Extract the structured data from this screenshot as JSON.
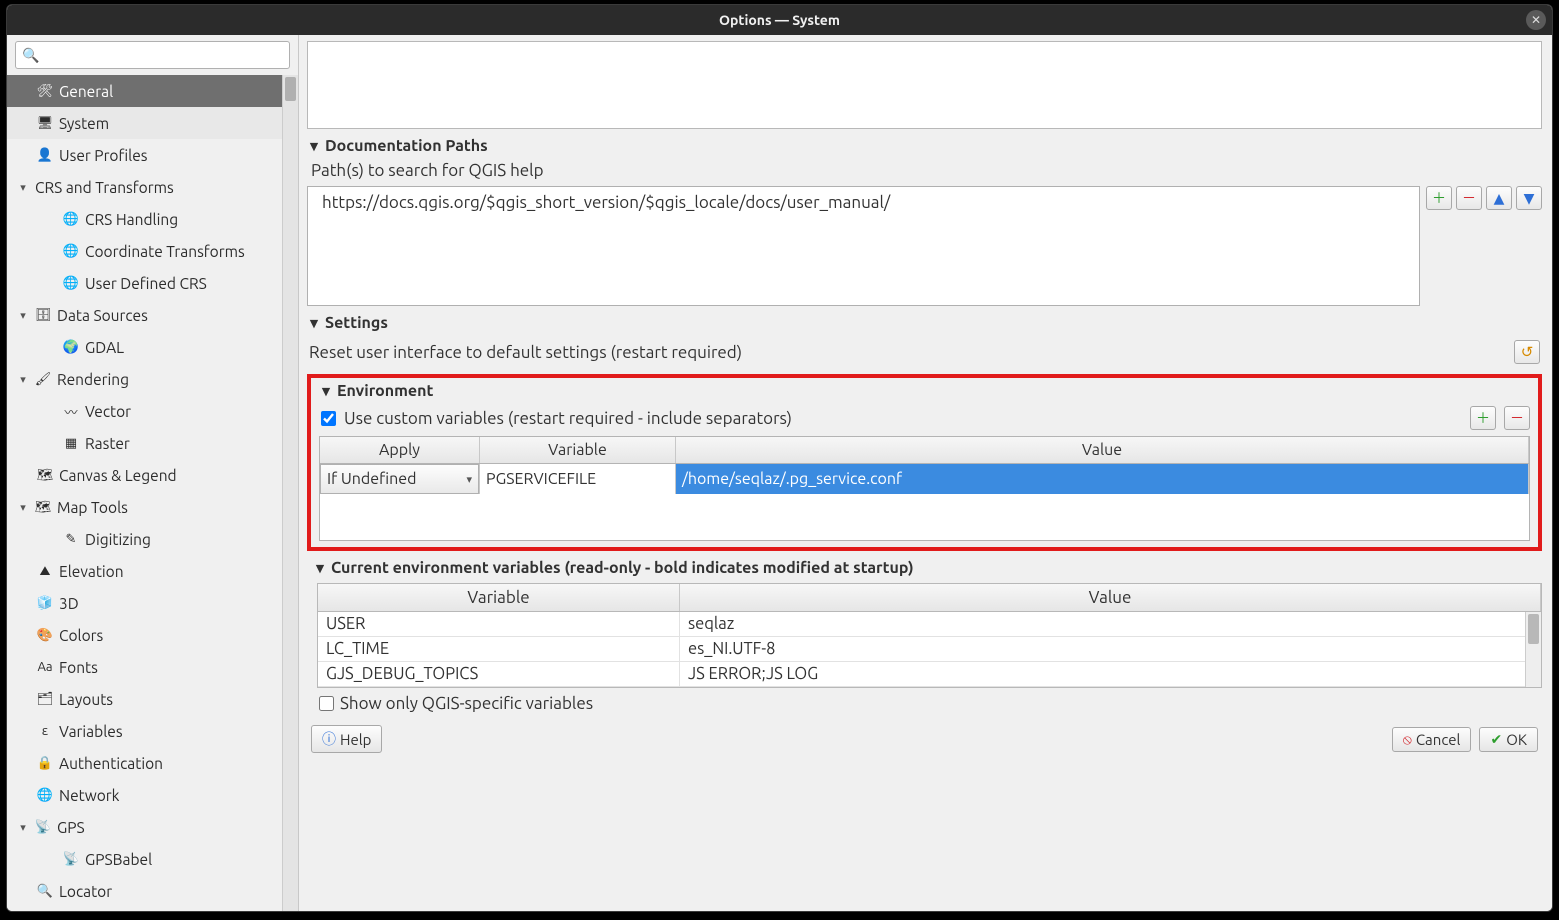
{
  "window": {
    "title": "Options — System"
  },
  "search": {
    "icon": "🔍"
  },
  "sidebar": {
    "items": [
      {
        "label": "General",
        "lvl": 1,
        "icon": "🛠",
        "arrow": ""
      },
      {
        "label": "System",
        "lvl": 1,
        "icon": "🖥",
        "arrow": "",
        "selected": true
      },
      {
        "label": "User Profiles",
        "lvl": 1,
        "icon": "👤",
        "arrow": ""
      },
      {
        "label": "CRS and Transforms",
        "lvl": 0,
        "icon": "",
        "arrow": "▾"
      },
      {
        "label": "CRS Handling",
        "lvl": 2,
        "icon": "🌐",
        "arrow": ""
      },
      {
        "label": "Coordinate Transforms",
        "lvl": 2,
        "icon": "🌐",
        "arrow": ""
      },
      {
        "label": "User Defined CRS",
        "lvl": 2,
        "icon": "🌐",
        "arrow": ""
      },
      {
        "label": "Data Sources",
        "lvl": 0,
        "icon": "🗄",
        "arrow": "▾"
      },
      {
        "label": "GDAL",
        "lvl": 2,
        "icon": "🌍",
        "arrow": ""
      },
      {
        "label": "Rendering",
        "lvl": 0,
        "icon": "🖌",
        "arrow": "▾"
      },
      {
        "label": "Vector",
        "lvl": 2,
        "icon": "〰",
        "arrow": ""
      },
      {
        "label": "Raster",
        "lvl": 2,
        "icon": "▦",
        "arrow": ""
      },
      {
        "label": "Canvas & Legend",
        "lvl": 1,
        "icon": "🗺",
        "arrow": ""
      },
      {
        "label": "Map Tools",
        "lvl": 0,
        "icon": "🗺",
        "arrow": "▾"
      },
      {
        "label": "Digitizing",
        "lvl": 2,
        "icon": "✎",
        "arrow": ""
      },
      {
        "label": "Elevation",
        "lvl": 1,
        "icon": "⛰",
        "arrow": ""
      },
      {
        "label": "3D",
        "lvl": 1,
        "icon": "🧊",
        "arrow": ""
      },
      {
        "label": "Colors",
        "lvl": 1,
        "icon": "🎨",
        "arrow": ""
      },
      {
        "label": "Fonts",
        "lvl": 1,
        "icon": "Aa",
        "arrow": ""
      },
      {
        "label": "Layouts",
        "lvl": 1,
        "icon": "🗂",
        "arrow": ""
      },
      {
        "label": "Variables",
        "lvl": 1,
        "icon": "ε",
        "arrow": ""
      },
      {
        "label": "Authentication",
        "lvl": 1,
        "icon": "🔒",
        "arrow": ""
      },
      {
        "label": "Network",
        "lvl": 1,
        "icon": "🌐",
        "arrow": ""
      },
      {
        "label": "GPS",
        "lvl": 0,
        "icon": "📡",
        "arrow": "▾"
      },
      {
        "label": "GPSBabel",
        "lvl": 2,
        "icon": "📡",
        "arrow": ""
      },
      {
        "label": "Locator",
        "lvl": 1,
        "icon": "🔍",
        "arrow": ""
      }
    ]
  },
  "doc": {
    "title": "Documentation Paths",
    "label": "Path(s) to search for QGIS help",
    "path": "https://docs.qgis.org/$qgis_short_version/$qgis_locale/docs/user_manual/",
    "btn_add": "＋",
    "btn_remove": "－",
    "btn_up": "▲",
    "btn_down": "▼"
  },
  "settings": {
    "title": "Settings",
    "label": "Reset user interface to default settings (restart required)",
    "reset_icon": "↺"
  },
  "env": {
    "title": "Environment",
    "checkbox_label": "Use custom variables (restart required - include separators)",
    "checked": true,
    "btn_add": "＋",
    "btn_remove": "－",
    "columns": {
      "apply": "Apply",
      "variable": "Variable",
      "value": "Value"
    },
    "row": {
      "apply": "If Undefined",
      "variable": "PGSERVICEFILE",
      "value": "/home/seqlaz/.pg_service.conf"
    }
  },
  "curenv": {
    "title": "Current environment variables (read-only - bold indicates modified at startup)",
    "columns": {
      "variable": "Variable",
      "value": "Value"
    },
    "rows": [
      {
        "variable": "GJS_DEBUG_TOPICS",
        "value": "JS ERROR;JS LOG"
      },
      {
        "variable": "LC_TIME",
        "value": "es_NI.UTF-8"
      },
      {
        "variable": "USER",
        "value": "seqlaz"
      }
    ],
    "show_only_label": "Show only QGIS-specific variables",
    "show_only_checked": false
  },
  "footer": {
    "help": "Help",
    "cancel": "Cancel",
    "ok": "OK"
  },
  "colors": {
    "highlight_red": "#e11b1b",
    "selection_blue": "#3b8be0"
  }
}
